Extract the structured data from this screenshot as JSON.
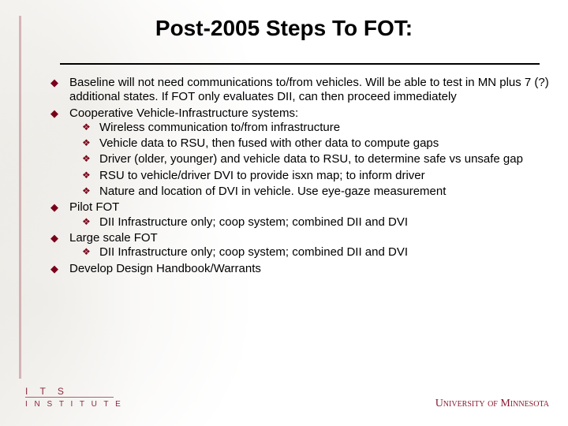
{
  "colors": {
    "maroon": "#7a0019",
    "text": "#000000",
    "background": "#ffffff",
    "rule": "#000000"
  },
  "typography": {
    "title_fontsize": 28,
    "body_fontsize": 15,
    "footer_fontsize": 12
  },
  "title": "Post-2005 Steps To FOT:",
  "bullets": [
    {
      "text": "Baseline will not need communications to/from vehicles. Will be able to test in MN plus 7 (?) additional states. If FOT only evaluates DII, can then proceed immediately",
      "sub": []
    },
    {
      "text": "Cooperative Vehicle-Infrastructure systems:",
      "sub": [
        "Wireless communication to/from infrastructure",
        "Vehicle data to RSU, then fused with other data to compute gaps",
        "Driver (older, younger) and vehicle data to RSU, to determine safe vs unsafe gap",
        "RSU to vehicle/driver DVI to provide isxn map; to inform driver",
        "Nature and location of DVI in vehicle. Use eye-gaze measurement"
      ]
    },
    {
      "text": "Pilot FOT",
      "sub": [
        "DII Infrastructure only; coop system; combined DII and DVI"
      ]
    },
    {
      "text": "Large scale FOT",
      "sub": [
        "DII Infrastructure only; coop system; combined DII and DVI"
      ]
    },
    {
      "text": "Develop Design Handbook/Warrants",
      "sub": []
    }
  ],
  "footer": {
    "left_line1": "I T S",
    "left_line2": "I N S T I T U T E",
    "right": "University of Minnesota"
  }
}
